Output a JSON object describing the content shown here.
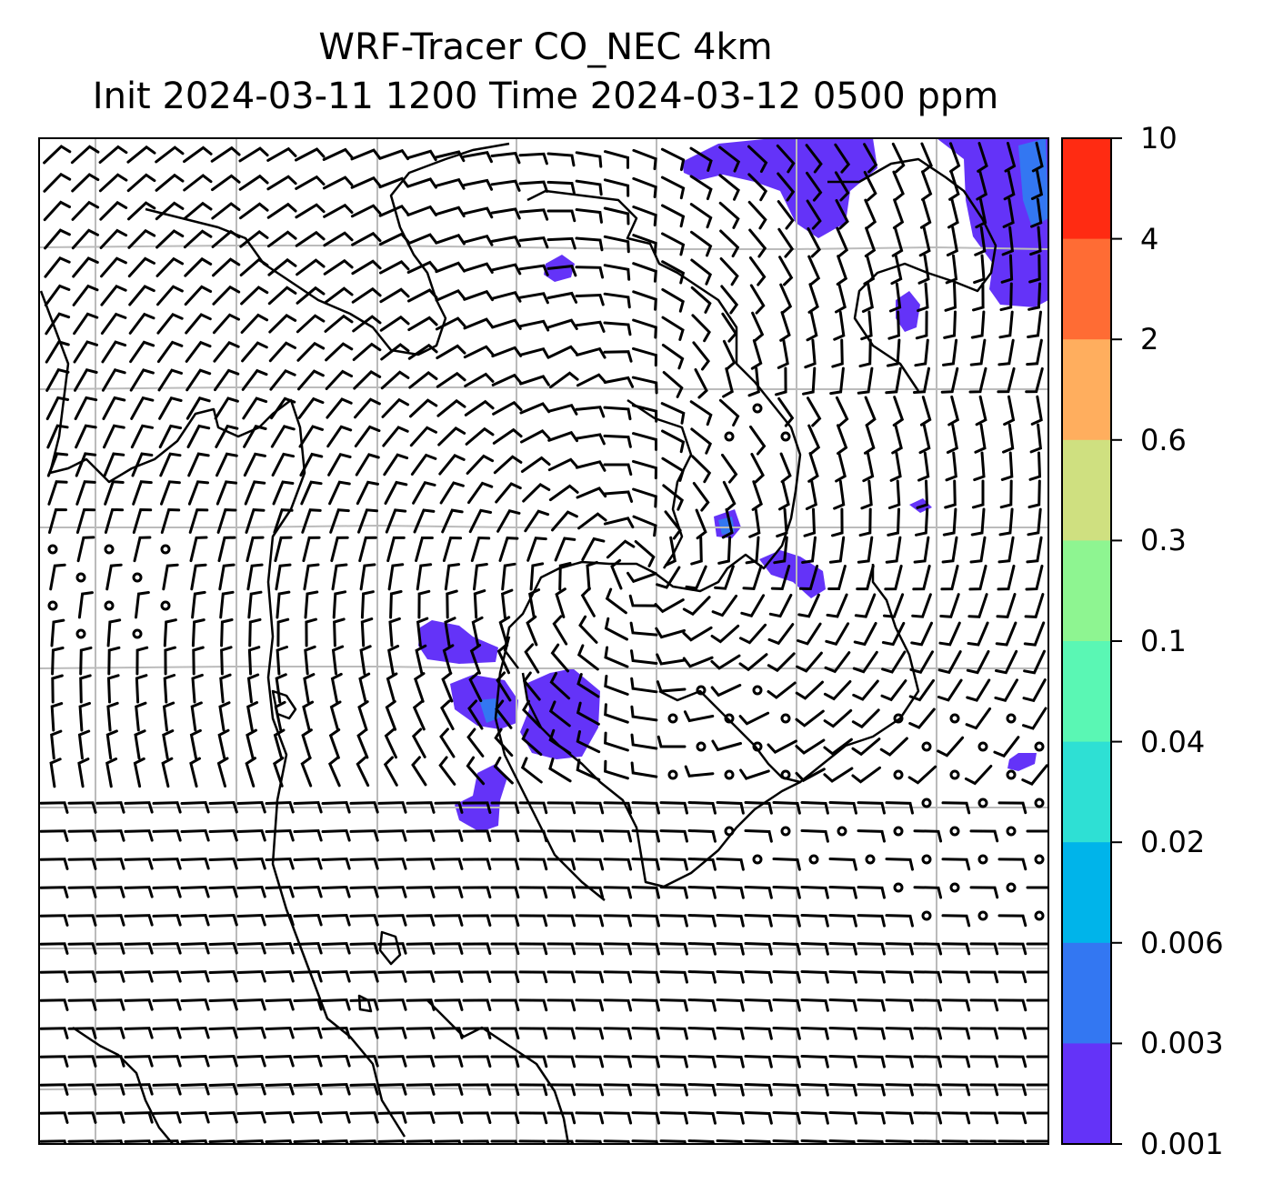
{
  "title": {
    "line1": "WRF-Tracer CO_NEC 4km",
    "line2": "Init 2024-03-11 1200 Time 2024-03-12 0500 ppm"
  },
  "colorbar": {
    "levels": [
      "10",
      "4",
      "2",
      "0.6",
      "0.3",
      "0.1",
      "0.04",
      "0.02",
      "0.006",
      "0.003",
      "0.001"
    ],
    "colors": [
      "#ff2b12",
      "#ff6c34",
      "#ffae5e",
      "#cfe080",
      "#8ef591",
      "#5af7b4",
      "#2ee0d4",
      "#00b4ea",
      "#3377f2",
      "#6433f8"
    ]
  },
  "palette": {
    "tracer_low": "#6433f8",
    "tracer_mid": "#3377f2",
    "gridline": "#bbbbbb",
    "coastline": "#000000",
    "barb": "#000000"
  }
}
